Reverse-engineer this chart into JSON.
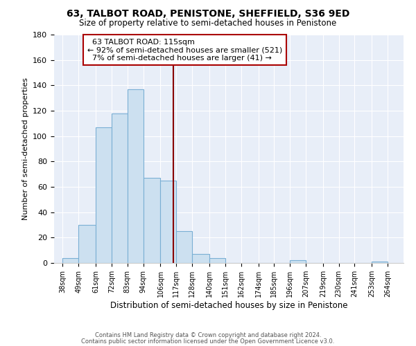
{
  "title": "63, TALBOT ROAD, PENISTONE, SHEFFIELD, S36 9ED",
  "subtitle": "Size of property relative to semi-detached houses in Penistone",
  "xlabel": "Distribution of semi-detached houses by size in Penistone",
  "ylabel": "Number of semi-detached properties",
  "bar_left_edges": [
    38,
    49,
    61,
    72,
    83,
    94,
    106,
    117,
    128,
    140,
    151,
    162,
    174,
    185,
    196,
    207,
    219,
    230,
    241,
    253
  ],
  "bar_heights": [
    4,
    30,
    107,
    118,
    137,
    67,
    65,
    25,
    7,
    4,
    0,
    0,
    0,
    0,
    2,
    0,
    0,
    0,
    0,
    1
  ],
  "bar_widths": [
    11,
    12,
    11,
    11,
    11,
    12,
    11,
    11,
    12,
    11,
    11,
    12,
    11,
    11,
    11,
    12,
    11,
    11,
    12,
    11
  ],
  "tick_labels": [
    "38sqm",
    "49sqm",
    "61sqm",
    "72sqm",
    "83sqm",
    "94sqm",
    "106sqm",
    "117sqm",
    "128sqm",
    "140sqm",
    "151sqm",
    "162sqm",
    "174sqm",
    "185sqm",
    "196sqm",
    "207sqm",
    "219sqm",
    "230sqm",
    "241sqm",
    "253sqm",
    "264sqm"
  ],
  "tick_positions": [
    38,
    49,
    61,
    72,
    83,
    94,
    106,
    117,
    128,
    140,
    151,
    162,
    174,
    185,
    196,
    207,
    219,
    230,
    241,
    253,
    264
  ],
  "bar_color": "#cce0f0",
  "bar_edge_color": "#7aafd4",
  "marker_x": 115,
  "ylim": [
    0,
    180
  ],
  "xlim": [
    32,
    275
  ],
  "yticks": [
    0,
    20,
    40,
    60,
    80,
    100,
    120,
    140,
    160,
    180
  ],
  "annotation_title": "63 TALBOT ROAD: 115sqm",
  "annotation_line1": "← 92% of semi-detached houses are smaller (521)",
  "annotation_line2": "7% of semi-detached houses are larger (41) →",
  "footer_line1": "Contains HM Land Registry data © Crown copyright and database right 2024.",
  "footer_line2": "Contains public sector information licensed under the Open Government Licence v3.0.",
  "background_color": "#ffffff",
  "plot_bg_color": "#e8eef8",
  "grid_color": "#ffffff",
  "annotation_box_color": "#ffffff",
  "annotation_box_edge": "#aa0000",
  "marker_line_color": "#880000"
}
